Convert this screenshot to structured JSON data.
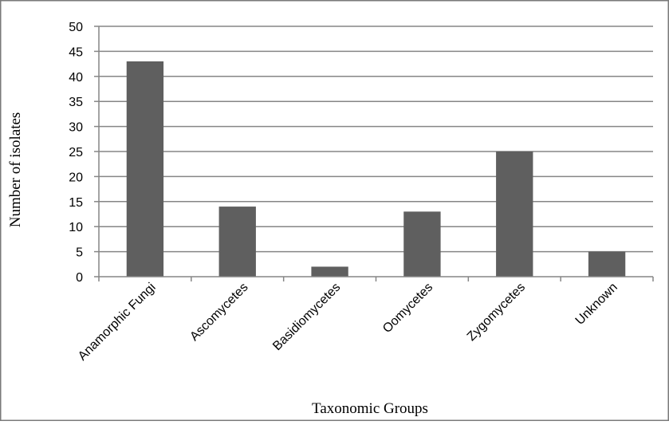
{
  "chart_data": {
    "type": "bar",
    "categories": [
      "Anamorphic Fungi",
      "Ascomycetes",
      "Basidiomycetes",
      "Oomycetes",
      "Zygomycetes",
      "Unknown"
    ],
    "values": [
      43,
      14,
      2,
      13,
      25,
      5
    ],
    "xlabel": "Taxonomic Groups",
    "ylabel": "Number of isolates",
    "ylim": [
      0,
      50
    ],
    "yticks": [
      0,
      5,
      10,
      15,
      20,
      25,
      30,
      35,
      40,
      45,
      50
    ],
    "grid": true,
    "legend": "none",
    "bar_color": "#5f5f5f",
    "grid_color": "#868686",
    "frame_color": "#7a7a7a"
  }
}
